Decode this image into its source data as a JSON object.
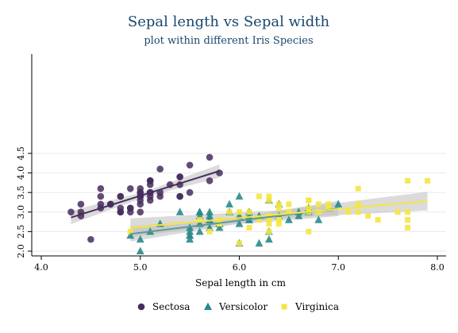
{
  "chart_data": {
    "type": "scatter",
    "title": "Sepal length vs Sepal width",
    "subtitle": "plot within different Iris Species",
    "xlabel": "Sepal length in cm",
    "ylabel": "",
    "xlim": [
      3.9,
      8.1
    ],
    "ylim": [
      1.95,
      4.55
    ],
    "xticks": [
      "4.0",
      "5.0",
      "6.0",
      "7.0",
      "8.0"
    ],
    "yticks": [
      "2.0",
      "2.5",
      "3.0",
      "3.5",
      "4.0",
      "4.5"
    ],
    "grid": true,
    "legend_position": "bottom",
    "series": [
      {
        "name": "Sectosa",
        "marker": "circle",
        "color": "#472d5e",
        "points": [
          [
            5.1,
            3.5
          ],
          [
            4.9,
            3.0
          ],
          [
            4.7,
            3.2
          ],
          [
            4.6,
            3.1
          ],
          [
            5.0,
            3.6
          ],
          [
            5.4,
            3.9
          ],
          [
            4.6,
            3.4
          ],
          [
            5.0,
            3.4
          ],
          [
            4.4,
            2.9
          ],
          [
            4.9,
            3.1
          ],
          [
            5.4,
            3.7
          ],
          [
            4.8,
            3.4
          ],
          [
            4.8,
            3.0
          ],
          [
            4.3,
            3.0
          ],
          [
            5.8,
            4.0
          ],
          [
            5.7,
            4.4
          ],
          [
            5.4,
            3.9
          ],
          [
            5.1,
            3.5
          ],
          [
            5.7,
            3.8
          ],
          [
            5.1,
            3.8
          ],
          [
            5.4,
            3.4
          ],
          [
            5.1,
            3.7
          ],
          [
            4.6,
            3.6
          ],
          [
            5.1,
            3.3
          ],
          [
            4.8,
            3.4
          ],
          [
            5.0,
            3.0
          ],
          [
            5.0,
            3.4
          ],
          [
            5.2,
            3.5
          ],
          [
            5.2,
            3.4
          ],
          [
            4.7,
            3.2
          ],
          [
            4.8,
            3.1
          ],
          [
            5.4,
            3.4
          ],
          [
            5.2,
            4.1
          ],
          [
            5.5,
            4.2
          ],
          [
            4.9,
            3.1
          ],
          [
            5.0,
            3.2
          ],
          [
            5.5,
            3.5
          ],
          [
            4.9,
            3.6
          ],
          [
            4.4,
            3.0
          ],
          [
            5.1,
            3.4
          ],
          [
            5.0,
            3.5
          ],
          [
            4.5,
            2.3
          ],
          [
            4.4,
            3.2
          ],
          [
            5.0,
            3.5
          ],
          [
            5.1,
            3.8
          ],
          [
            4.8,
            3.0
          ],
          [
            5.1,
            3.8
          ],
          [
            4.6,
            3.2
          ],
          [
            5.3,
            3.7
          ],
          [
            5.0,
            3.3
          ]
        ],
        "fit": {
          "x0": 4.3,
          "y0": 2.86,
          "x1": 5.8,
          "y1": 4.05,
          "ci_halfwidth": 0.12
        }
      },
      {
        "name": "Versicolor",
        "marker": "triangle",
        "color": "#2a8a8a",
        "points": [
          [
            7.0,
            3.2
          ],
          [
            6.4,
            3.2
          ],
          [
            6.9,
            3.1
          ],
          [
            5.5,
            2.3
          ],
          [
            6.5,
            2.8
          ],
          [
            5.7,
            2.8
          ],
          [
            6.3,
            3.3
          ],
          [
            4.9,
            2.4
          ],
          [
            6.6,
            2.9
          ],
          [
            5.2,
            2.7
          ],
          [
            5.0,
            2.0
          ],
          [
            5.9,
            3.0
          ],
          [
            6.0,
            2.2
          ],
          [
            6.1,
            2.9
          ],
          [
            5.6,
            2.9
          ],
          [
            6.7,
            3.1
          ],
          [
            5.6,
            3.0
          ],
          [
            5.8,
            2.7
          ],
          [
            6.2,
            2.2
          ],
          [
            5.6,
            2.5
          ],
          [
            5.9,
            3.2
          ],
          [
            6.1,
            2.8
          ],
          [
            6.3,
            2.5
          ],
          [
            6.1,
            2.8
          ],
          [
            6.4,
            2.9
          ],
          [
            6.6,
            3.0
          ],
          [
            6.8,
            2.8
          ],
          [
            6.7,
            3.0
          ],
          [
            6.0,
            2.9
          ],
          [
            5.7,
            2.6
          ],
          [
            5.5,
            2.4
          ],
          [
            5.5,
            2.4
          ],
          [
            5.8,
            2.7
          ],
          [
            6.0,
            2.7
          ],
          [
            5.4,
            3.0
          ],
          [
            6.0,
            3.4
          ],
          [
            6.7,
            3.1
          ],
          [
            6.3,
            2.3
          ],
          [
            5.6,
            3.0
          ],
          [
            5.5,
            2.5
          ],
          [
            5.5,
            2.6
          ],
          [
            6.1,
            3.0
          ],
          [
            5.8,
            2.6
          ],
          [
            5.0,
            2.3
          ],
          [
            5.6,
            2.7
          ],
          [
            5.7,
            3.0
          ],
          [
            5.7,
            2.9
          ],
          [
            6.2,
            2.9
          ],
          [
            5.1,
            2.5
          ],
          [
            5.7,
            2.8
          ]
        ],
        "fit": {
          "x0": 4.9,
          "y0": 2.44,
          "x1": 7.0,
          "y1": 3.09,
          "ci_halfwidth": 0.14
        }
      },
      {
        "name": "Virginica",
        "marker": "square",
        "color": "#f5e642",
        "points": [
          [
            6.3,
            3.3
          ],
          [
            5.8,
            2.7
          ],
          [
            7.1,
            3.0
          ],
          [
            6.3,
            2.9
          ],
          [
            6.5,
            3.0
          ],
          [
            7.6,
            3.0
          ],
          [
            4.9,
            2.5
          ],
          [
            7.3,
            2.9
          ],
          [
            6.7,
            2.5
          ],
          [
            7.2,
            3.6
          ],
          [
            6.5,
            3.2
          ],
          [
            6.4,
            2.7
          ],
          [
            6.8,
            3.0
          ],
          [
            5.7,
            2.5
          ],
          [
            5.8,
            2.8
          ],
          [
            6.4,
            3.2
          ],
          [
            6.5,
            3.0
          ],
          [
            7.7,
            3.8
          ],
          [
            7.7,
            2.6
          ],
          [
            6.0,
            2.2
          ],
          [
            6.9,
            3.2
          ],
          [
            5.6,
            2.8
          ],
          [
            7.7,
            2.8
          ],
          [
            6.3,
            2.7
          ],
          [
            6.7,
            3.3
          ],
          [
            7.2,
            3.2
          ],
          [
            6.2,
            2.8
          ],
          [
            6.1,
            3.0
          ],
          [
            6.4,
            2.8
          ],
          [
            7.2,
            3.0
          ],
          [
            7.4,
            2.8
          ],
          [
            7.9,
            3.8
          ],
          [
            6.4,
            2.8
          ],
          [
            6.3,
            2.8
          ],
          [
            6.1,
            2.6
          ],
          [
            7.7,
            3.0
          ],
          [
            6.3,
            3.4
          ],
          [
            6.4,
            3.1
          ],
          [
            6.0,
            3.0
          ],
          [
            6.9,
            3.1
          ],
          [
            6.7,
            3.1
          ],
          [
            6.9,
            3.1
          ],
          [
            5.8,
            2.7
          ],
          [
            6.8,
            3.2
          ],
          [
            6.7,
            3.3
          ],
          [
            6.7,
            3.0
          ],
          [
            6.3,
            2.5
          ],
          [
            6.5,
            3.0
          ],
          [
            6.2,
            3.4
          ],
          [
            5.9,
            3.0
          ]
        ],
        "fit": {
          "x0": 4.9,
          "y0": 2.6,
          "x1": 7.9,
          "y1": 3.28,
          "ci_halfwidth": 0.17
        }
      }
    ]
  }
}
